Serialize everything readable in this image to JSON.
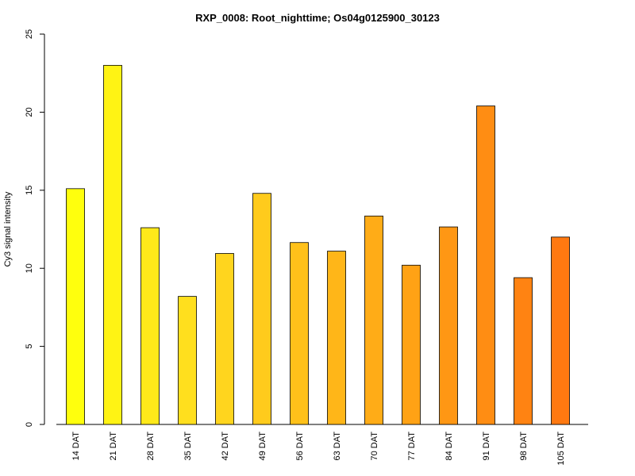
{
  "chart_data": {
    "type": "bar",
    "title": "RXP_0008: Root_nighttime; Os04g0125900_30123",
    "xlabel": "",
    "ylabel": "Cy3 signal intensity",
    "ylim": [
      0,
      25
    ],
    "yticks": [
      0,
      5,
      10,
      15,
      20,
      25
    ],
    "grid": false,
    "legend": "none",
    "categories": [
      "14 DAT",
      "21 DAT",
      "28 DAT",
      "35 DAT",
      "42 DAT",
      "49 DAT",
      "56 DAT",
      "63 DAT",
      "70 DAT",
      "77 DAT",
      "84 DAT",
      "91 DAT",
      "98 DAT",
      "105 DAT"
    ],
    "values": [
      15.1,
      23.0,
      12.6,
      8.2,
      10.95,
      14.8,
      11.65,
      11.1,
      13.35,
      10.2,
      12.65,
      20.4,
      9.4,
      12.0
    ],
    "colors": [
      "#FFFF0D",
      "#FFF314",
      "#FFE91A",
      "#FFDF1E",
      "#FFD51E",
      "#FFCB1C",
      "#FFC11A",
      "#FFB618",
      "#FFAC17",
      "#FFA215",
      "#FF9714",
      "#FF8D13",
      "#FF8312",
      "#FF7911"
    ]
  }
}
